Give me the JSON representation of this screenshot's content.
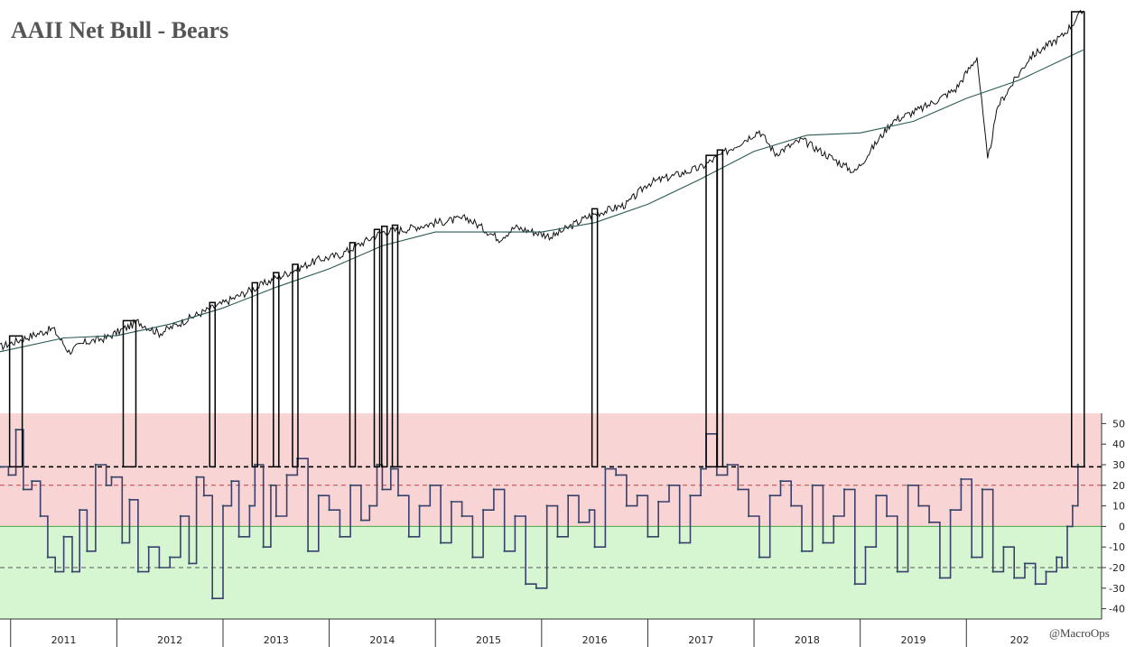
{
  "chart_data": [
    {
      "type": "line",
      "title": "AAII Net Bull - Bears",
      "description_series": [
        {
          "name": "",
          "role": "index price",
          "x": [
            2010.9,
            2011.2,
            2011.4,
            2011.55,
            2011.7,
            2011.9,
            2012.2,
            2012.4,
            2012.75,
            2013.0,
            2013.5,
            2013.9,
            2014.1,
            2014.5,
            2014.7,
            2015.0,
            2015.3,
            2015.6,
            2015.75,
            2016.1,
            2016.45,
            2016.8,
            2017.0,
            2017.5,
            2018.05,
            2018.2,
            2018.45,
            2018.95,
            2019.3,
            2019.6,
            2019.9,
            2020.1,
            2020.2,
            2020.3,
            2020.6,
            2020.9,
            2021.1
          ],
          "y": [
            0.74,
            0.79,
            0.82,
            0.72,
            0.76,
            0.78,
            0.85,
            0.8,
            0.88,
            0.93,
            1.04,
            1.12,
            1.14,
            1.24,
            1.25,
            1.28,
            1.3,
            1.21,
            1.26,
            1.22,
            1.31,
            1.36,
            1.45,
            1.52,
            1.68,
            1.58,
            1.64,
            1.5,
            1.72,
            1.78,
            1.86,
            2.0,
            1.55,
            1.79,
            2.0,
            2.09,
            2.2
          ]
        },
        {
          "name": "",
          "role": "long-term moving average",
          "x": [
            2010.9,
            2011.5,
            2012.0,
            2012.5,
            2013.0,
            2013.5,
            2014.0,
            2014.5,
            2015.0,
            2015.5,
            2016.0,
            2016.5,
            2017.0,
            2017.5,
            2018.0,
            2018.5,
            2019.0,
            2019.5,
            2020.0,
            2020.5,
            2021.1
          ],
          "y": [
            0.72,
            0.78,
            0.79,
            0.84,
            0.91,
            1.0,
            1.08,
            1.18,
            1.24,
            1.24,
            1.24,
            1.28,
            1.36,
            1.47,
            1.59,
            1.66,
            1.67,
            1.72,
            1.82,
            1.9,
            2.03
          ]
        }
      ],
      "xlabel": "",
      "ylabel": "",
      "x_categories": [
        "2011",
        "2012",
        "2013",
        "2014",
        "2015",
        "2016",
        "2017",
        "2018",
        "2019",
        "202"
      ]
    },
    {
      "type": "line",
      "title": "",
      "series": [
        {
          "name": "",
          "x": [
            2010.9,
            2010.98,
            2011.05,
            2011.12,
            2011.2,
            2011.28,
            2011.35,
            2011.42,
            2011.5,
            2011.58,
            2011.65,
            2011.72,
            2011.8,
            2011.9,
            2011.95,
            2012.05,
            2012.12,
            2012.2,
            2012.3,
            2012.4,
            2012.5,
            2012.6,
            2012.68,
            2012.75,
            2012.82,
            2012.9,
            2013.0,
            2013.08,
            2013.15,
            2013.25,
            2013.3,
            2013.38,
            2013.45,
            2013.5,
            2013.6,
            2013.7,
            2013.8,
            2013.9,
            2014.0,
            2014.1,
            2014.2,
            2014.3,
            2014.38,
            2014.45,
            2014.5,
            2014.58,
            2014.65,
            2014.75,
            2014.85,
            2014.95,
            2015.05,
            2015.15,
            2015.25,
            2015.35,
            2015.45,
            2015.55,
            2015.65,
            2015.75,
            2015.85,
            2015.95,
            2016.05,
            2016.15,
            2016.25,
            2016.35,
            2016.45,
            2016.5,
            2016.6,
            2016.7,
            2016.8,
            2016.9,
            2017.0,
            2017.1,
            2017.2,
            2017.3,
            2017.4,
            2017.5,
            2017.55,
            2017.65,
            2017.75,
            2017.85,
            2017.95,
            2018.05,
            2018.15,
            2018.25,
            2018.35,
            2018.45,
            2018.55,
            2018.65,
            2018.75,
            2018.85,
            2018.95,
            2019.05,
            2019.15,
            2019.25,
            2019.35,
            2019.45,
            2019.55,
            2019.65,
            2019.75,
            2019.85,
            2019.95,
            2020.05,
            2020.15,
            2020.25,
            2020.35,
            2020.45,
            2020.55,
            2020.65,
            2020.75,
            2020.85,
            2020.9,
            2020.95,
            2021.0,
            2021.05
          ],
          "values": [
            29,
            25,
            47,
            18,
            22,
            5,
            -15,
            -22,
            -5,
            -22,
            8,
            -12,
            30,
            20,
            24,
            -8,
            13,
            -22,
            -10,
            -20,
            -15,
            5,
            -18,
            24,
            15,
            -35,
            10,
            22,
            -5,
            10,
            30,
            -10,
            20,
            5,
            25,
            33,
            -12,
            15,
            8,
            -5,
            20,
            3,
            10,
            30,
            18,
            28,
            15,
            -5,
            10,
            20,
            -8,
            12,
            5,
            -15,
            8,
            18,
            -12,
            5,
            -28,
            -30,
            10,
            -5,
            15,
            2,
            8,
            -10,
            28,
            25,
            10,
            15,
            -5,
            12,
            20,
            -8,
            15,
            28,
            45,
            25,
            30,
            18,
            5,
            -15,
            15,
            22,
            10,
            -12,
            20,
            -8,
            5,
            18,
            -28,
            -10,
            15,
            5,
            -22,
            20,
            10,
            2,
            -25,
            8,
            23,
            -15,
            18,
            -22,
            -10,
            -25,
            -18,
            -28,
            -22,
            -15,
            -20,
            0,
            10,
            30
          ]
        }
      ],
      "ylim": [
        -45,
        55
      ],
      "yticks": [
        50,
        40,
        30,
        20,
        10,
        0,
        -10,
        -20,
        -30,
        -40
      ],
      "zones": [
        {
          "name": "",
          "range": [
            0,
            55
          ],
          "color": "#f8d4d4"
        },
        {
          "name": "",
          "range": [
            -45,
            0
          ],
          "color": "#d6f6d2"
        }
      ],
      "reference_lines": [
        {
          "value": 29,
          "style": "dashed",
          "color": "#000000"
        },
        {
          "value": 20,
          "style": "dashed",
          "color": "#c04040"
        },
        {
          "value": -20,
          "style": "dashed",
          "color": "#555555"
        },
        {
          "value": 0,
          "style": "solid",
          "color": "#44aa44"
        }
      ],
      "highlight_weeks": [
        2011.05,
        2012.12,
        2012.9,
        2013.3,
        2013.5,
        2013.68,
        2014.22,
        2014.45,
        2014.52,
        2014.62,
        2016.5,
        2017.6,
        2017.68,
        2021.05
      ],
      "legend": "none",
      "grid": false
    }
  ],
  "credit": "@MacroOps",
  "colors": {
    "price_line": "#111111",
    "ma_line": "#2a5a55",
    "sentiment_line_top": "#3a3f6e",
    "sentiment_line_bottom": "#1f5a5a",
    "highlight_box": "#000000"
  }
}
